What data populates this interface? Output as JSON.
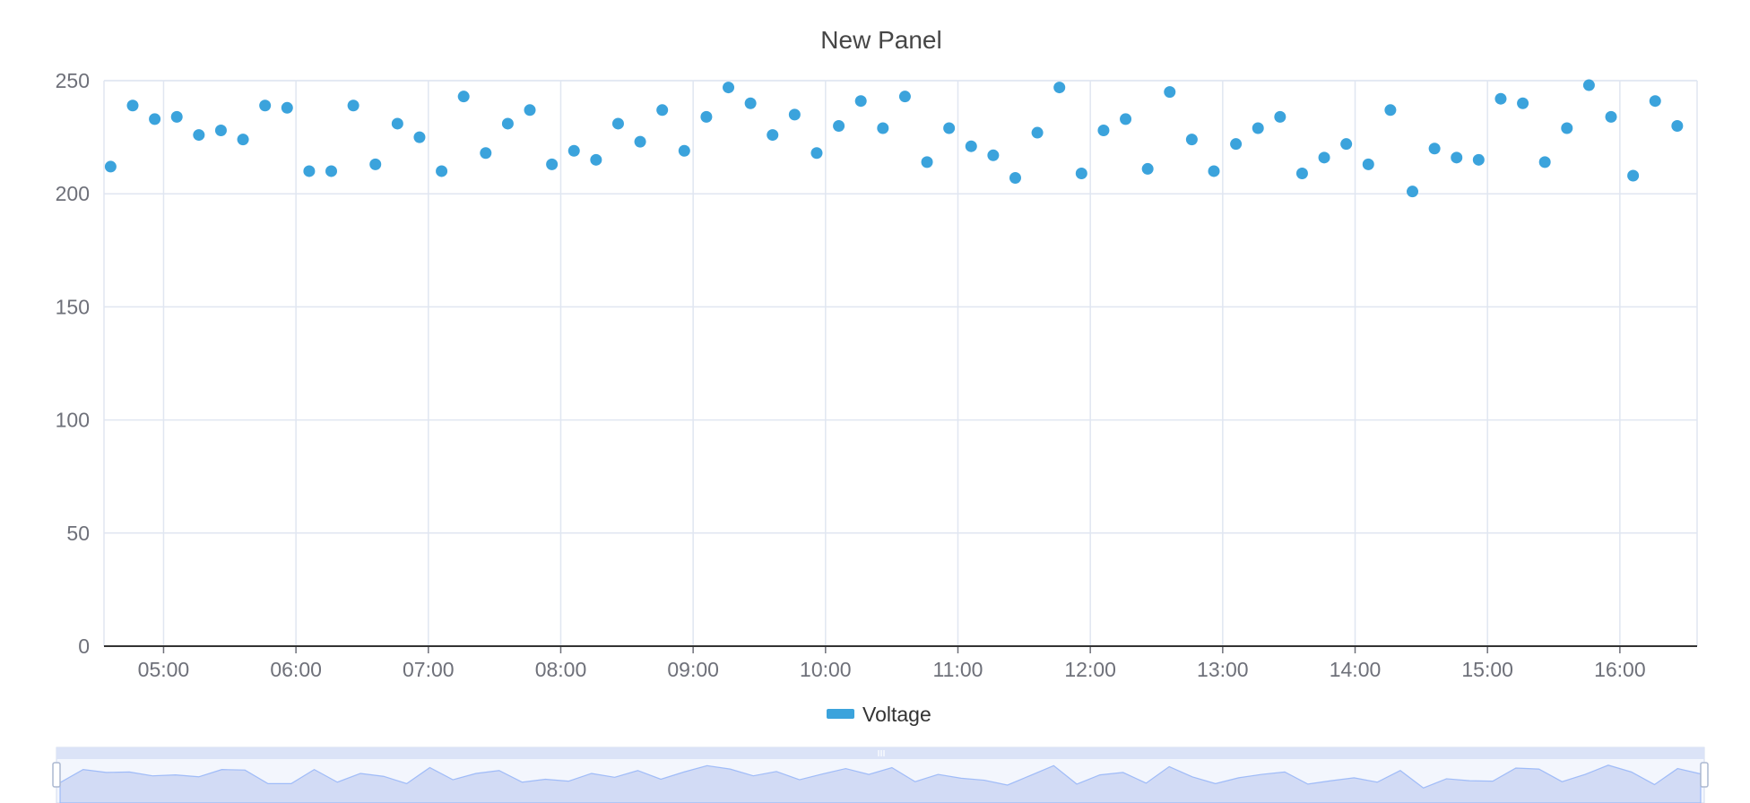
{
  "panel": {
    "title": "New Panel"
  },
  "chart_data": {
    "type": "scatter",
    "title": "New Panel",
    "xlabel": "",
    "ylabel": "",
    "ylim": [
      0,
      250
    ],
    "y_ticks": [
      0,
      50,
      100,
      150,
      200,
      250
    ],
    "x_ticks": [
      "05:00",
      "06:00",
      "07:00",
      "08:00",
      "09:00",
      "10:00",
      "11:00",
      "12:00",
      "13:00",
      "14:00",
      "15:00",
      "16:00"
    ],
    "xlim": [
      "04:33",
      "16:35"
    ],
    "grid": true,
    "legend_position": "bottom-center",
    "series": [
      {
        "name": "Voltage",
        "color": "#3ba3dc",
        "x": [
          "04:36",
          "04:46",
          "04:56",
          "05:06",
          "05:16",
          "05:26",
          "05:36",
          "05:46",
          "05:56",
          "06:06",
          "06:16",
          "06:26",
          "06:36",
          "06:46",
          "06:56",
          "07:06",
          "07:16",
          "07:26",
          "07:36",
          "07:46",
          "07:56",
          "08:06",
          "08:16",
          "08:26",
          "08:36",
          "08:46",
          "08:56",
          "09:06",
          "09:16",
          "09:26",
          "09:36",
          "09:46",
          "09:56",
          "10:06",
          "10:16",
          "10:26",
          "10:36",
          "10:46",
          "10:56",
          "11:06",
          "11:16",
          "11:26",
          "11:36",
          "11:46",
          "11:56",
          "12:06",
          "12:16",
          "12:26",
          "12:36",
          "12:46",
          "12:56",
          "13:06",
          "13:16",
          "13:26",
          "13:36",
          "13:46",
          "13:56",
          "14:06",
          "14:16",
          "14:26",
          "14:36",
          "14:46",
          "14:56",
          "15:06",
          "15:16",
          "15:26",
          "15:36",
          "15:46",
          "15:56",
          "16:06",
          "16:16",
          "16:26"
        ],
        "values": [
          212,
          239,
          233,
          234,
          226,
          228,
          224,
          239,
          238,
          210,
          210,
          239,
          213,
          231,
          225,
          210,
          243,
          218,
          231,
          237,
          213,
          219,
          215,
          231,
          223,
          237,
          219,
          234,
          247,
          240,
          226,
          235,
          218,
          230,
          241,
          229,
          243,
          214,
          229,
          221,
          217,
          207,
          227,
          247,
          209,
          228,
          233,
          211,
          245,
          224,
          210,
          222,
          229,
          234,
          209,
          216,
          222,
          213,
          237,
          201,
          220,
          216,
          215,
          242,
          240,
          214,
          229,
          248,
          234,
          208,
          241,
          230
        ]
      }
    ]
  },
  "legend": {
    "label": "Voltage",
    "color": "#3ba3dc"
  },
  "colors": {
    "grid": "#e0e6f1",
    "axis": "#6e7079",
    "point": "#3ba3dc",
    "zoom_fill": "#d2dbf5",
    "zoom_line": "#8fb0f7"
  }
}
